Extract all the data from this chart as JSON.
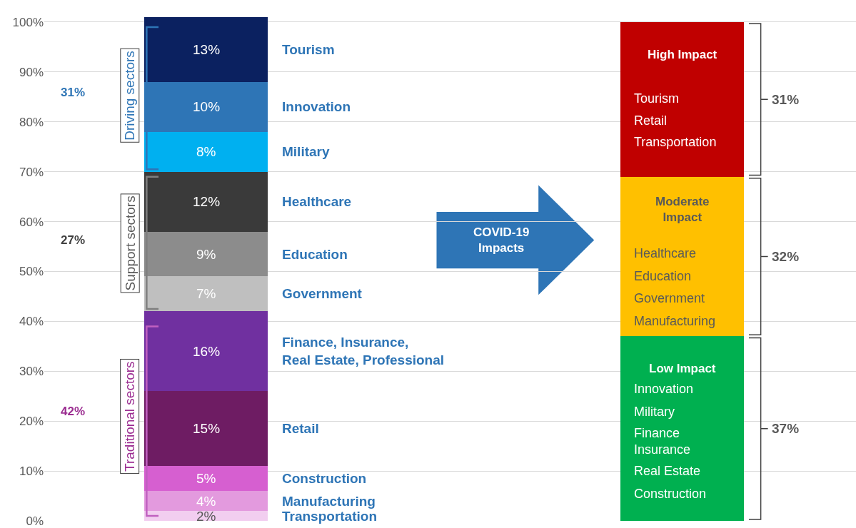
{
  "chart_data": {
    "type": "bar",
    "stacked": true,
    "categories": [
      null,
      null
    ],
    "ylim": [
      0,
      101
    ],
    "yticks": [
      {
        "value": 0,
        "label": "0%"
      },
      {
        "value": 10,
        "label": "10%"
      },
      {
        "value": 20,
        "label": "20%"
      },
      {
        "value": 30,
        "label": "30%"
      },
      {
        "value": 40,
        "label": "40%"
      },
      {
        "value": 50,
        "label": "50%"
      },
      {
        "value": 60,
        "label": "60%"
      },
      {
        "value": 70,
        "label": "70%"
      },
      {
        "value": 80,
        "label": "80%"
      },
      {
        "value": 90,
        "label": "90%"
      },
      {
        "value": 100,
        "label": "100%"
      }
    ],
    "grid": "y",
    "legend": false,
    "tick_labels": "y",
    "series": [
      {
        "color": "#f2cef0",
        "values": [
          2,
          null
        ],
        "value_labels": [
          "2%",
          null
        ]
      },
      {
        "color": "#e39ade",
        "values": [
          4,
          null
        ],
        "value_labels": [
          "4%",
          null
        ]
      },
      {
        "color": "#d65fd0",
        "values": [
          5,
          null
        ],
        "value_labels": [
          "5%",
          null
        ]
      },
      {
        "color": "#6e1c63",
        "values": [
          15,
          null
        ],
        "value_labels": [
          "15%",
          null
        ]
      },
      {
        "color": "#7030a0",
        "values": [
          16,
          null
        ],
        "value_labels": [
          "16%",
          null
        ]
      },
      {
        "color": "#bfbfbf",
        "values": [
          7,
          null
        ],
        "value_labels": [
          "7%",
          null
        ]
      },
      {
        "color": "#8c8c8c",
        "values": [
          9,
          null
        ],
        "value_labels": [
          "9%",
          null
        ]
      },
      {
        "color": "#3a3a3a",
        "values": [
          12,
          null
        ],
        "value_labels": [
          "12%",
          null
        ]
      },
      {
        "color": "#00b0f0",
        "values": [
          8,
          null
        ],
        "value_labels": [
          "8%",
          null
        ]
      },
      {
        "color": "#2e75b6",
        "values": [
          10,
          null
        ],
        "value_labels": [
          "10%",
          null
        ]
      },
      {
        "color": "#0b2160",
        "values": [
          13,
          null
        ],
        "value_labels": [
          "13%",
          null
        ]
      },
      {
        "name": "Low Impact",
        "color": "#00b050",
        "values": [
          null,
          37
        ]
      },
      {
        "name": "Moderate\nImpact",
        "color": "#ffc000",
        "values": [
          null,
          32
        ]
      },
      {
        "name": "High Impact",
        "color": "#c00000",
        "values": [
          null,
          31
        ]
      }
    ],
    "annotations": [
      "31%",
      "27%",
      "42%",
      "Driving sectors",
      "Support sectors",
      "Traditional sectors",
      "COVID-19\nImpacts",
      "Tourism",
      "Retail",
      "Transportation",
      "Healthcare",
      "Education",
      "Government",
      "Manufacturing",
      "Innovation",
      "Military",
      "Finance\nInsurance",
      "Real Estate",
      "Construction",
      "Tourism",
      "Innovation",
      "Military",
      "Healthcare",
      "Education",
      "Government",
      "Finance, Insurance,\nReal Estate, Professional",
      "Retail",
      "Construction",
      "Manufacturing",
      "Transportation",
      "31%",
      "32%",
      "37%"
    ]
  }
}
